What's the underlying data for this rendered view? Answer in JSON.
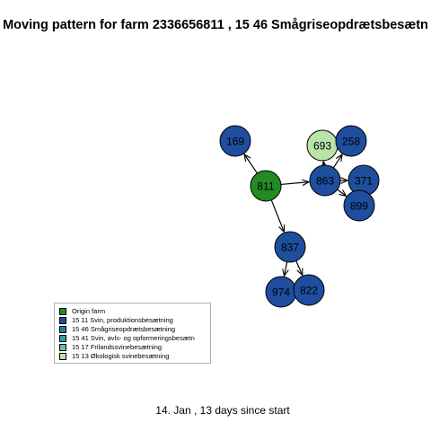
{
  "title": "Moving pattern for farm 2336656811 , 15 46 Smågriseopdrætsbesætn",
  "footer": "14. Jan ,  13 days since start",
  "colors": {
    "origin": "#228B22",
    "production": "#1F4E9E",
    "smagrise": "#1E7FA8",
    "avls": "#2E9FA8",
    "frilands": "#5FC2A8",
    "okologisk": "#B9E3A8"
  },
  "nodes": [
    {
      "id": "811",
      "label": "811",
      "category": "origin"
    },
    {
      "id": "169",
      "label": "169",
      "category": "production"
    },
    {
      "id": "863",
      "label": "863",
      "category": "production"
    },
    {
      "id": "693",
      "label": "693",
      "category": "okologisk"
    },
    {
      "id": "258",
      "label": "258",
      "category": "production"
    },
    {
      "id": "371",
      "label": "371",
      "category": "production"
    },
    {
      "id": "899",
      "label": "899",
      "category": "production"
    },
    {
      "id": "837",
      "label": "837",
      "category": "production"
    },
    {
      "id": "974",
      "label": "974",
      "category": "production"
    },
    {
      "id": "822",
      "label": "822",
      "category": "production"
    }
  ],
  "edges": [
    {
      "from": "811",
      "to": "169"
    },
    {
      "from": "811",
      "to": "863"
    },
    {
      "from": "811",
      "to": "837"
    },
    {
      "from": "863",
      "to": "693"
    },
    {
      "from": "863",
      "to": "258"
    },
    {
      "from": "863",
      "to": "371"
    },
    {
      "from": "863",
      "to": "899"
    },
    {
      "from": "837",
      "to": "974"
    },
    {
      "from": "837",
      "to": "822"
    }
  ],
  "legend": {
    "items": [
      {
        "label": "Origin farm",
        "category": "origin"
      },
      {
        "label": "15 11 Svin, produktionsbesætning",
        "category": "production"
      },
      {
        "label": "15 46 Smågriseopdrætsbesætning",
        "category": "smagrise"
      },
      {
        "label": "15 41 Svin, avls- og opformeringsbesætn",
        "category": "avls"
      },
      {
        "label": "15 17 Frilandssvinebesætning",
        "category": "frilands"
      },
      {
        "label": "15 13 Økologisk svinebesætning",
        "category": "okologisk"
      }
    ]
  }
}
